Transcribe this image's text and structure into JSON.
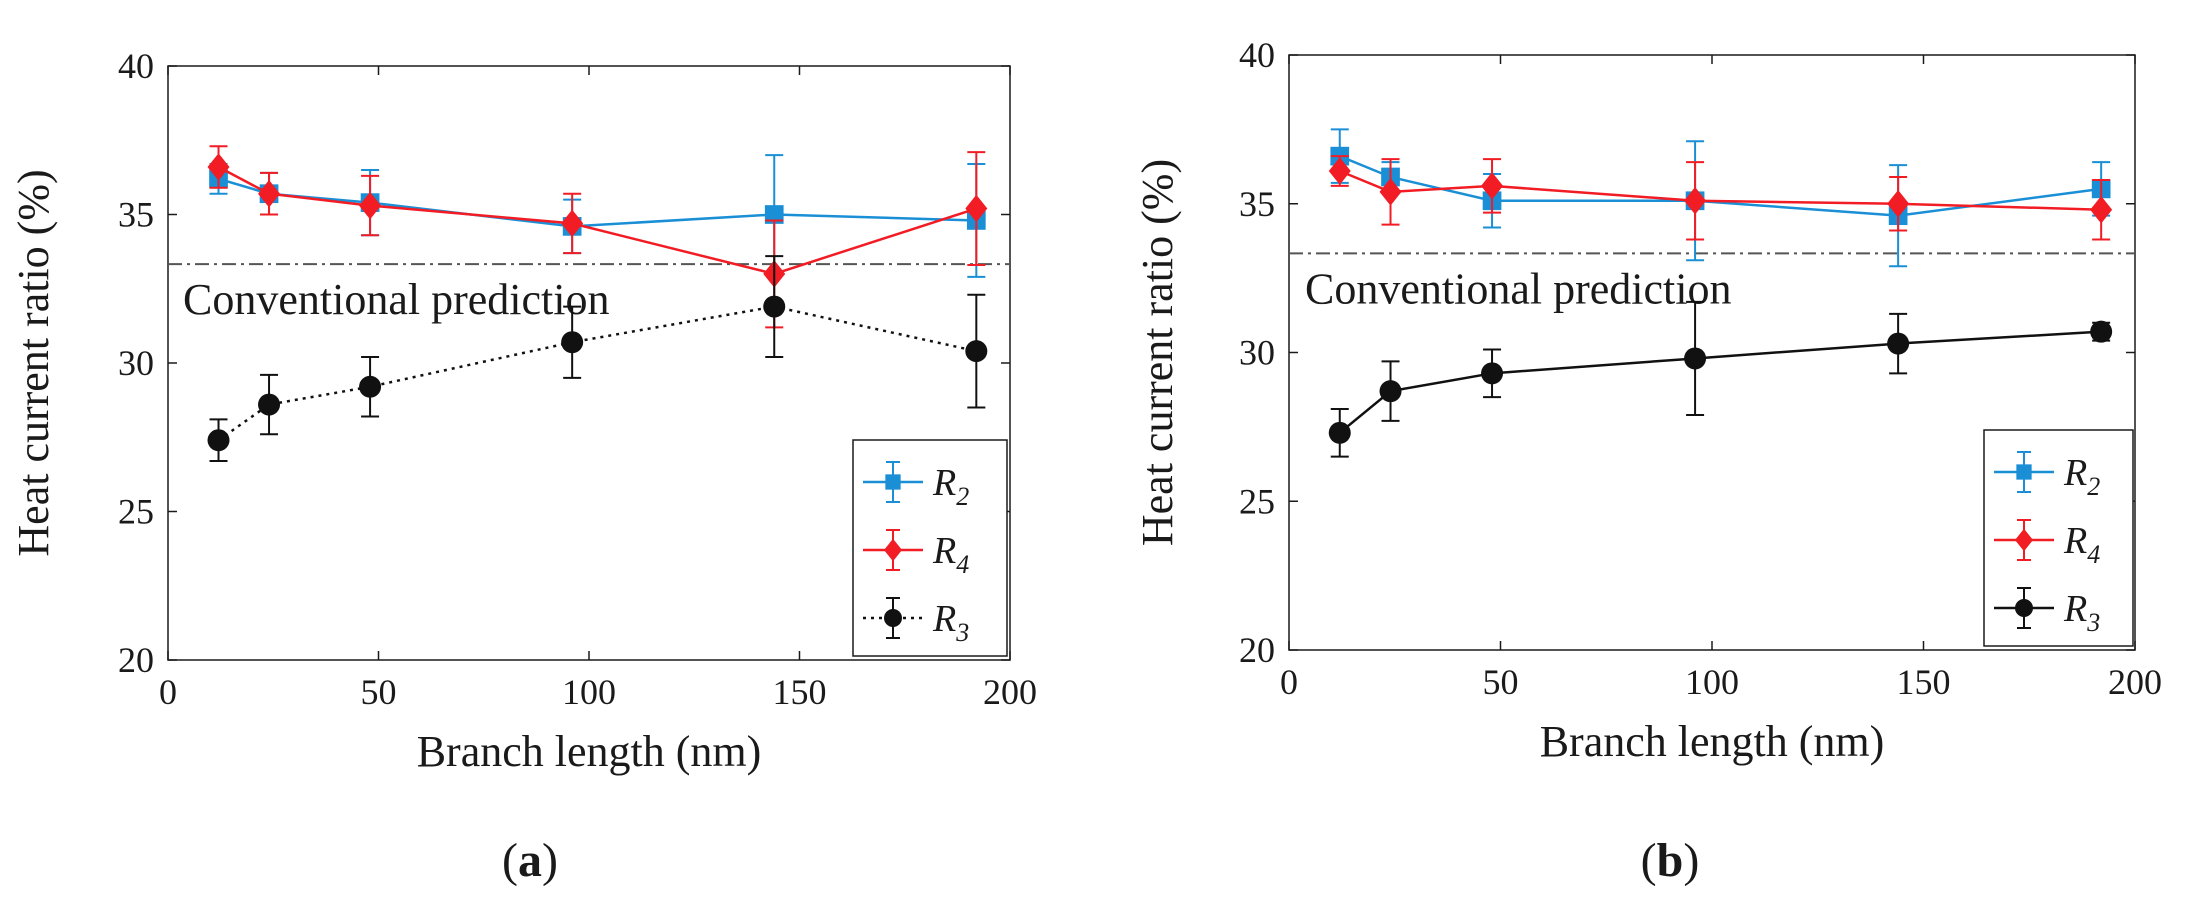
{
  "chart_data": [
    {
      "type": "line",
      "panel": "a",
      "xlabel": "Branch length (nm)",
      "ylabel": "Heat current ratio (%)",
      "xlim": [
        0,
        200
      ],
      "ylim": [
        20,
        40
      ],
      "xticks": [
        0,
        50,
        100,
        150,
        200
      ],
      "yticks": [
        20,
        25,
        30,
        35,
        40
      ],
      "x": [
        12,
        24,
        48,
        96,
        144,
        192
      ],
      "reference_line": {
        "y": 33.33,
        "label": "Conventional prediction"
      },
      "legend_position": "bottom-right",
      "series": [
        {
          "name": "R",
          "sub": "2",
          "color": "#1a8fd6",
          "marker": "square",
          "line": "solid",
          "values": [
            36.2,
            35.7,
            35.4,
            34.6,
            35.0,
            34.8
          ],
          "errors": [
            0.5,
            0.7,
            1.1,
            0.9,
            2.0,
            1.9
          ]
        },
        {
          "name": "R",
          "sub": "4",
          "color": "#f21c24",
          "marker": "diamond",
          "line": "solid",
          "values": [
            36.6,
            35.7,
            35.3,
            34.7,
            33.0,
            35.2
          ],
          "errors": [
            0.7,
            0.7,
            1.0,
            1.0,
            1.8,
            1.9
          ]
        },
        {
          "name": "R",
          "sub": "3",
          "color": "#111111",
          "marker": "circle",
          "line": "dotted",
          "values": [
            27.4,
            28.6,
            29.2,
            30.7,
            31.9,
            30.4
          ],
          "errors": [
            0.7,
            1.0,
            1.0,
            1.2,
            1.7,
            1.9
          ]
        }
      ]
    },
    {
      "type": "line",
      "panel": "b",
      "xlabel": "Branch length (nm)",
      "ylabel": "Heat current ratio (%)",
      "xlim": [
        0,
        200
      ],
      "ylim": [
        20,
        40
      ],
      "xticks": [
        0,
        50,
        100,
        150,
        200
      ],
      "yticks": [
        20,
        25,
        30,
        35,
        40
      ],
      "x": [
        12,
        24,
        48,
        96,
        144,
        192
      ],
      "reference_line": {
        "y": 33.33,
        "label": "Conventional prediction"
      },
      "legend_position": "bottom-right",
      "series": [
        {
          "name": "R",
          "sub": "2",
          "color": "#1a8fd6",
          "marker": "square",
          "line": "solid",
          "values": [
            36.6,
            35.9,
            35.1,
            35.1,
            34.6,
            35.5
          ],
          "errors": [
            0.9,
            0.5,
            0.9,
            2.0,
            1.7,
            0.9
          ]
        },
        {
          "name": "R",
          "sub": "4",
          "color": "#f21c24",
          "marker": "diamond",
          "line": "solid",
          "values": [
            36.1,
            35.4,
            35.6,
            35.1,
            35.0,
            34.8
          ],
          "errors": [
            0.5,
            1.1,
            0.9,
            1.3,
            0.9,
            1.0
          ]
        },
        {
          "name": "R",
          "sub": "3",
          "color": "#111111",
          "marker": "circle",
          "line": "solid",
          "values": [
            27.3,
            28.7,
            29.3,
            29.8,
            30.3,
            30.7
          ],
          "errors": [
            0.8,
            1.0,
            0.8,
            1.9,
            1.0,
            0.3
          ]
        }
      ]
    }
  ],
  "captions": {
    "a": {
      "open": "(",
      "letter": "a",
      "close": ")"
    },
    "b": {
      "open": "(",
      "letter": "b",
      "close": ")"
    }
  }
}
